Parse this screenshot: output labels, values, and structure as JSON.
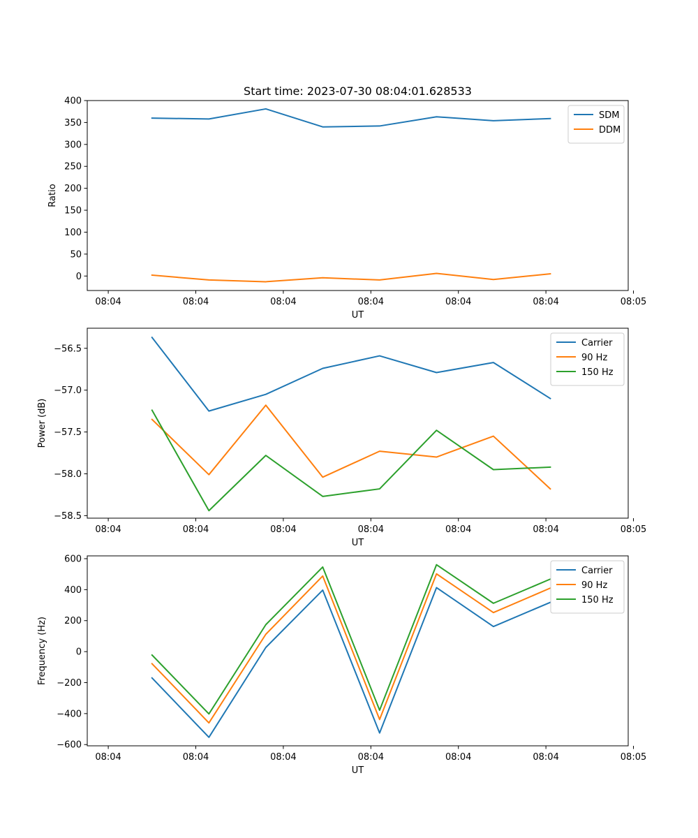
{
  "chart_data": [
    {
      "type": "line",
      "title": "Start time: 2023-07-30 08:04:01.628533",
      "xlabel": "UT",
      "ylabel": "Ratio",
      "xlim": [
        -0.24,
        5.94
      ],
      "ylim": [
        -33,
        400
      ],
      "x_ticks": [
        {
          "value": 0,
          "label": "08:04"
        },
        {
          "value": 1,
          "label": "08:04"
        },
        {
          "value": 2,
          "label": "08:04"
        },
        {
          "value": 3,
          "label": "08:04"
        },
        {
          "value": 4,
          "label": "08:04"
        },
        {
          "value": 5,
          "label": "08:04"
        },
        {
          "value": 6,
          "label": "08:05"
        }
      ],
      "y_ticks": [
        {
          "value": 0,
          "label": "0"
        },
        {
          "value": 50,
          "label": "50"
        },
        {
          "value": 100,
          "label": "100"
        },
        {
          "value": 150,
          "label": "150"
        },
        {
          "value": 200,
          "label": "200"
        },
        {
          "value": 250,
          "label": "250"
        },
        {
          "value": 300,
          "label": "300"
        },
        {
          "value": 350,
          "label": "350"
        },
        {
          "value": 400,
          "label": "400"
        }
      ],
      "x": [
        0.5,
        1.15,
        1.8,
        2.45,
        3.1,
        3.75,
        4.4,
        5.05
      ],
      "series": [
        {
          "name": "SDM",
          "color": "#1f77b4",
          "values": [
            360,
            358,
            381,
            340,
            342,
            363,
            354,
            359
          ]
        },
        {
          "name": "DDM",
          "color": "#ff7f0e",
          "values": [
            2,
            -9,
            -13,
            -4,
            -9,
            6,
            -8,
            5
          ]
        }
      ],
      "legend": "top-right",
      "grid": false
    },
    {
      "type": "line",
      "title": "",
      "xlabel": "UT",
      "ylabel": "Power (dB)",
      "xlim": [
        -0.24,
        5.94
      ],
      "ylim": [
        -58.53,
        -56.26
      ],
      "x_ticks": [
        {
          "value": 0,
          "label": "08:04"
        },
        {
          "value": 1,
          "label": "08:04"
        },
        {
          "value": 2,
          "label": "08:04"
        },
        {
          "value": 3,
          "label": "08:04"
        },
        {
          "value": 4,
          "label": "08:04"
        },
        {
          "value": 5,
          "label": "08:04"
        },
        {
          "value": 6,
          "label": "08:05"
        }
      ],
      "y_ticks": [
        {
          "value": -58.5,
          "label": "−58.5"
        },
        {
          "value": -58.0,
          "label": "−58.0"
        },
        {
          "value": -57.5,
          "label": "−57.5"
        },
        {
          "value": -57.0,
          "label": "−57.0"
        },
        {
          "value": -56.5,
          "label": "−56.5"
        }
      ],
      "x": [
        0.5,
        1.15,
        1.8,
        2.45,
        3.1,
        3.75,
        4.4,
        5.05
      ],
      "series": [
        {
          "name": "Carrier",
          "color": "#1f77b4",
          "values": [
            -56.37,
            -57.25,
            -57.05,
            -56.74,
            -56.59,
            -56.79,
            -56.67,
            -57.1
          ]
        },
        {
          "name": "90 Hz",
          "color": "#ff7f0e",
          "values": [
            -57.35,
            -58.01,
            -57.18,
            -58.04,
            -57.73,
            -57.8,
            -57.55,
            -58.18
          ]
        },
        {
          "name": "150 Hz",
          "color": "#2ca02c",
          "values": [
            -57.24,
            -58.44,
            -57.78,
            -58.27,
            -58.18,
            -57.48,
            -57.95,
            -57.92
          ]
        }
      ],
      "legend": "top-right",
      "grid": false
    },
    {
      "type": "line",
      "title": "",
      "xlabel": "UT",
      "ylabel": "Frequency (Hz)",
      "xlim": [
        -0.24,
        5.94
      ],
      "ylim": [
        -608,
        618
      ],
      "x_ticks": [
        {
          "value": 0,
          "label": "08:04"
        },
        {
          "value": 1,
          "label": "08:04"
        },
        {
          "value": 2,
          "label": "08:04"
        },
        {
          "value": 3,
          "label": "08:04"
        },
        {
          "value": 4,
          "label": "08:04"
        },
        {
          "value": 5,
          "label": "08:04"
        },
        {
          "value": 6,
          "label": "08:05"
        }
      ],
      "y_ticks": [
        {
          "value": -600,
          "label": "−600"
        },
        {
          "value": -400,
          "label": "−400"
        },
        {
          "value": -200,
          "label": "−200"
        },
        {
          "value": 0,
          "label": "0"
        },
        {
          "value": 200,
          "label": "200"
        },
        {
          "value": 400,
          "label": "400"
        },
        {
          "value": 600,
          "label": "600"
        }
      ],
      "x": [
        0.5,
        1.15,
        1.8,
        2.45,
        3.1,
        3.75,
        4.4,
        5.05
      ],
      "series": [
        {
          "name": "Carrier",
          "color": "#1f77b4",
          "values": [
            -170,
            -553,
            27,
            397,
            -525,
            413,
            162,
            318
          ]
        },
        {
          "name": "90 Hz",
          "color": "#ff7f0e",
          "values": [
            -78,
            -460,
            112,
            488,
            -438,
            502,
            252,
            410
          ]
        },
        {
          "name": "150 Hz",
          "color": "#2ca02c",
          "values": [
            -22,
            -402,
            174,
            546,
            -378,
            561,
            312,
            468
          ]
        }
      ],
      "legend": "top-right",
      "grid": false
    }
  ]
}
